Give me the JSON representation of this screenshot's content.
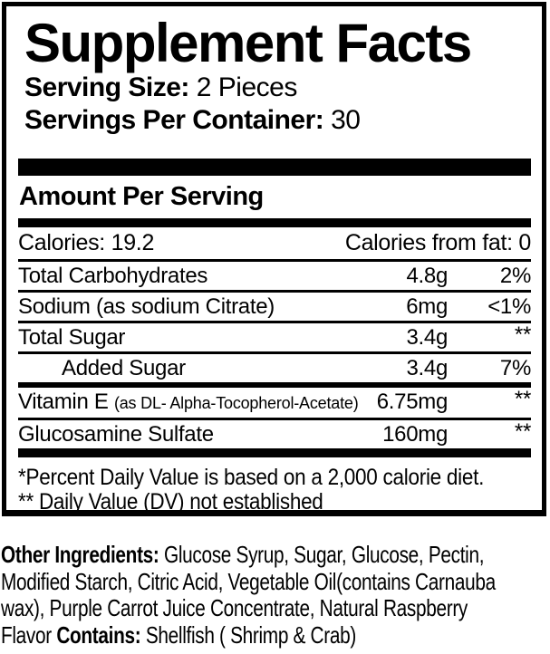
{
  "supplement_facts": {
    "title": "Supplement Facts",
    "serving_size_label": "Serving Size:",
    "serving_size_value": "2 Pieces",
    "servings_per_container_label": "Servings Per Container:",
    "servings_per_container_value": "30",
    "amount_per_serving": "Amount Per Serving",
    "calories": "Calories: 19.2",
    "calories_from_fat": "Calories from fat: 0",
    "rows": [
      {
        "name": "Total Carbohydrates",
        "amount": "4.8g",
        "dv": "2%"
      },
      {
        "name": "Sodium (as sodium Citrate)",
        "amount": "6mg",
        "dv": "<1%"
      },
      {
        "name": "Total Sugar",
        "amount": "3.4g",
        "dv": "**"
      },
      {
        "name": "Added Sugar",
        "amount": "3.4g",
        "dv": "7%"
      },
      {
        "name": "Vitamin E",
        "name_detail": "(as DL- Alpha-Tocopherol-Acetate)",
        "amount": "6.75mg",
        "dv": "**"
      },
      {
        "name": "Glucosamine Sulfate",
        "amount": "160mg",
        "dv": "**"
      }
    ],
    "footnote_1": "*Percent Daily Value is based on a 2,000 calorie diet.",
    "footnote_2": "** Daily Value (DV) not established"
  },
  "other_ingredients": {
    "label": "Other Ingredients:",
    "line1_rest": " Glucose Syrup, Sugar, Glucose, Pectin,",
    "line2": "Modified Starch, Citric Acid, Vegetable Oil(contains Carnauba",
    "line3": "wax), Purple Carrot Juice Concentrate, Natural Raspberry",
    "line4_flavor": "Flavor",
    "contains_label": "Contains:",
    "contains_value": " Shellfish ( Shrimp & Crab)"
  },
  "colors": {
    "ink": "#000000",
    "background": "#ffffff"
  }
}
